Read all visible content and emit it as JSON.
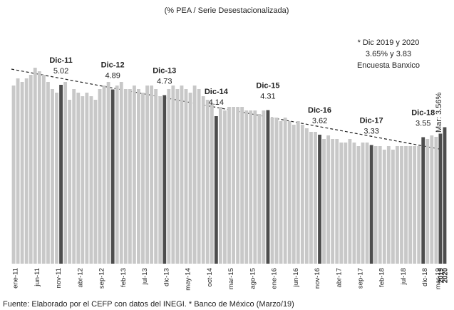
{
  "chart_data": {
    "type": "bar",
    "title": "(% PEA / Serie Desestacionalizada)",
    "categories": [
      "ene-11",
      null,
      null,
      null,
      null,
      "jun-11",
      null,
      null,
      null,
      null,
      "nov-11",
      null,
      null,
      null,
      null,
      "abr-12",
      null,
      null,
      null,
      null,
      "sep-12",
      null,
      null,
      null,
      null,
      "feb-13",
      null,
      null,
      null,
      null,
      "jul-13",
      null,
      null,
      null,
      null,
      "dic-13",
      null,
      null,
      null,
      null,
      "may-14",
      null,
      null,
      null,
      null,
      "oct-14",
      null,
      null,
      null,
      null,
      "mar-15",
      null,
      null,
      null,
      null,
      "ago-15",
      null,
      null,
      null,
      null,
      "ene-16",
      null,
      null,
      null,
      null,
      "jun-16",
      null,
      null,
      null,
      null,
      "nov-16",
      null,
      null,
      null,
      null,
      "abr-17",
      null,
      null,
      null,
      null,
      "sep-17",
      null,
      null,
      null,
      null,
      "feb-18",
      null,
      null,
      null,
      null,
      "jul-18",
      null,
      null,
      null,
      null,
      "dic-18",
      null,
      null,
      "mar-19",
      "2019",
      "2020"
    ],
    "values": [
      5.0,
      5.2,
      5.1,
      5.2,
      5.3,
      5.5,
      5.4,
      5.3,
      5.1,
      4.9,
      4.8,
      5.02,
      5.1,
      4.6,
      4.9,
      4.8,
      4.7,
      4.8,
      4.7,
      4.6,
      4.9,
      5.0,
      5.1,
      4.89,
      5.0,
      5.1,
      4.9,
      4.9,
      5.0,
      4.9,
      4.8,
      5.0,
      5.0,
      4.9,
      4.7,
      4.73,
      4.9,
      5.0,
      4.9,
      5.0,
      4.9,
      4.8,
      5.0,
      4.9,
      4.7,
      4.6,
      4.5,
      4.14,
      4.4,
      4.3,
      4.4,
      4.4,
      4.4,
      4.4,
      4.3,
      4.3,
      4.3,
      4.2,
      4.3,
      4.31,
      4.1,
      4.1,
      4.0,
      4.1,
      4.0,
      3.9,
      4.0,
      3.9,
      3.8,
      3.7,
      3.7,
      3.62,
      3.5,
      3.6,
      3.5,
      3.5,
      3.4,
      3.4,
      3.5,
      3.4,
      3.3,
      3.4,
      3.4,
      3.33,
      3.3,
      3.3,
      3.2,
      3.3,
      3.2,
      3.3,
      3.3,
      3.3,
      3.3,
      3.3,
      3.3,
      3.55,
      3.5,
      3.6,
      3.56,
      3.65,
      3.83
    ],
    "value_labels": [
      null,
      null,
      null,
      null,
      null,
      null,
      null,
      null,
      null,
      null,
      null,
      "5.02",
      null,
      null,
      null,
      null,
      null,
      null,
      null,
      null,
      null,
      null,
      null,
      "4.89",
      null,
      null,
      null,
      null,
      null,
      null,
      null,
      null,
      null,
      null,
      null,
      "4.73",
      null,
      null,
      null,
      null,
      null,
      null,
      null,
      null,
      null,
      null,
      null,
      "4.14",
      null,
      null,
      null,
      null,
      null,
      null,
      null,
      null,
      null,
      null,
      null,
      "4.31",
      null,
      null,
      null,
      null,
      null,
      null,
      null,
      null,
      null,
      null,
      null,
      "3.62",
      null,
      null,
      null,
      null,
      null,
      null,
      null,
      null,
      null,
      null,
      null,
      "3.33",
      null,
      null,
      null,
      null,
      null,
      null,
      null,
      null,
      null,
      null,
      null,
      "3.55",
      null,
      null,
      "Mar: 3.56%",
      null,
      null
    ],
    "label_names": [
      null,
      null,
      null,
      null,
      null,
      null,
      null,
      null,
      null,
      null,
      null,
      "Dic-11",
      null,
      null,
      null,
      null,
      null,
      null,
      null,
      null,
      null,
      null,
      null,
      "Dic-12",
      null,
      null,
      null,
      null,
      null,
      null,
      null,
      null,
      null,
      null,
      null,
      "Dic-13",
      null,
      null,
      null,
      null,
      null,
      null,
      null,
      null,
      null,
      null,
      null,
      "Dic-14",
      null,
      null,
      null,
      null,
      null,
      null,
      null,
      null,
      null,
      null,
      null,
      "Dic-15",
      null,
      null,
      null,
      null,
      null,
      null,
      null,
      null,
      null,
      null,
      null,
      "Dic-16",
      null,
      null,
      null,
      null,
      null,
      null,
      null,
      null,
      null,
      null,
      null,
      "Dic-17",
      null,
      null,
      null,
      null,
      null,
      null,
      null,
      null,
      null,
      null,
      null,
      "Dic-18",
      null,
      null,
      null,
      null,
      null
    ],
    "color": "#c8c8c8",
    "highlight_color": "#4d4d4d",
    "highlight": [
      11,
      23,
      35,
      47,
      59,
      71,
      83,
      95,
      99,
      100
    ],
    "ylim": [
      0,
      5.8
    ],
    "annotation": [
      "* Dic 2019 y 2020",
      "3.65% y 3.83",
      "Encuesta Banxico"
    ],
    "source": "Fuente: Elaborado por el CEFP con datos del INEGI. * Banco de México (Marzo/19)"
  }
}
